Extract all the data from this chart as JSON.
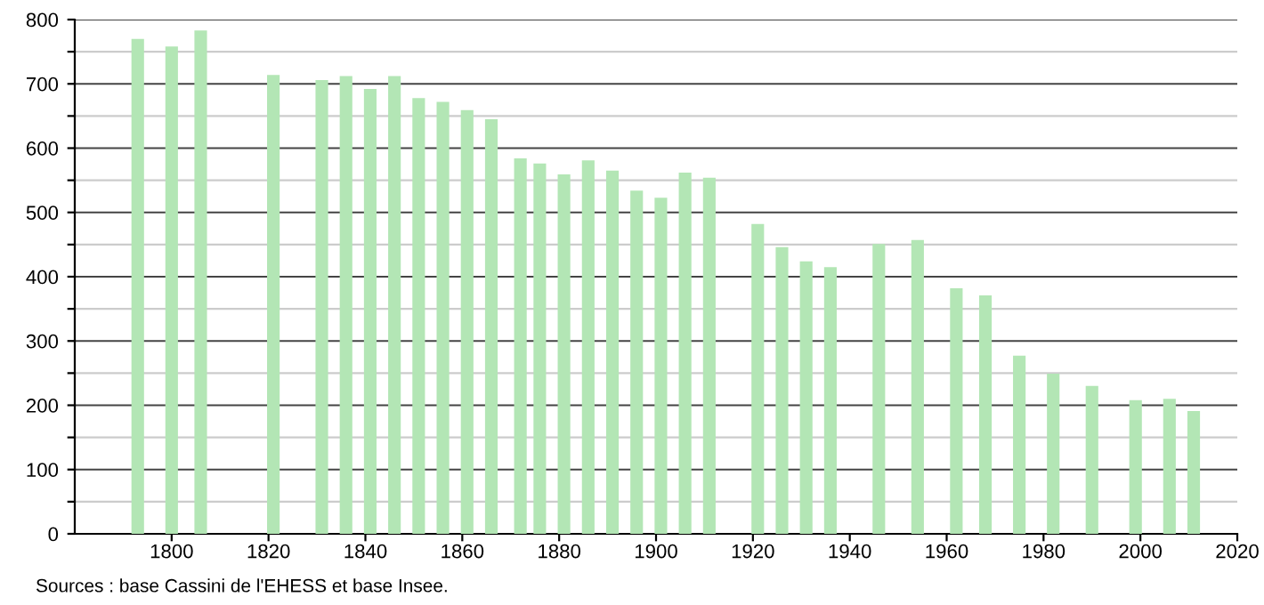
{
  "chart_data": {
    "type": "bar",
    "x": [
      1793,
      1800,
      1806,
      1821,
      1831,
      1836,
      1841,
      1846,
      1851,
      1856,
      1861,
      1866,
      1872,
      1876,
      1881,
      1886,
      1891,
      1896,
      1901,
      1906,
      1911,
      1921,
      1926,
      1931,
      1936,
      1946,
      1954,
      1962,
      1968,
      1975,
      1982,
      1990,
      1999,
      2006,
      2011
    ],
    "values": [
      770,
      758,
      783,
      714,
      706,
      712,
      692,
      712,
      678,
      672,
      659,
      645,
      584,
      576,
      559,
      581,
      565,
      534,
      523,
      562,
      554,
      482,
      446,
      424,
      415,
      451,
      457,
      382,
      371,
      277,
      249,
      230,
      208,
      210,
      191
    ],
    "color": "#b3e6b5",
    "xlim": [
      1780,
      2020
    ],
    "xticks": [
      1800,
      1820,
      1840,
      1860,
      1880,
      1900,
      1920,
      1940,
      1960,
      1980,
      2000,
      2020
    ],
    "ylim": [
      0,
      800
    ],
    "yticks": [
      0,
      {
        "value": 50,
        "label": null
      },
      100,
      {
        "value": 150,
        "label": null
      },
      200,
      {
        "value": 250,
        "label": null
      },
      300,
      {
        "value": 350,
        "label": null
      },
      400,
      {
        "value": 450,
        "label": null
      },
      500,
      {
        "value": 550,
        "label": null
      },
      600,
      {
        "value": 650,
        "label": null
      },
      700,
      {
        "value": 750,
        "label": null
      },
      800
    ],
    "grid": "y",
    "annotations": [
      "Sources : base Cassini de l'EHESS et base Insee."
    ]
  }
}
